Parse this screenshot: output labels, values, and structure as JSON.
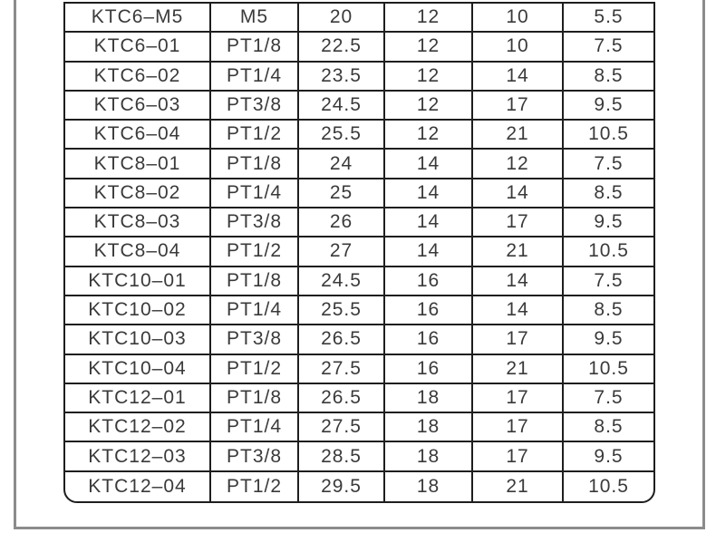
{
  "colors": {
    "background": "#ffffff",
    "page_frame": "#8c8c8c",
    "table_border": "#1e1e1e",
    "table_text": "#3a3a3a"
  },
  "table": {
    "rows": [
      [
        "KTC6–M5",
        "M5",
        "20",
        "12",
        "10",
        "5.5"
      ],
      [
        "KTC6–01",
        "PT1/8",
        "22.5",
        "12",
        "10",
        "7.5"
      ],
      [
        "KTC6–02",
        "PT1/4",
        "23.5",
        "12",
        "14",
        "8.5"
      ],
      [
        "KTC6–03",
        "PT3/8",
        "24.5",
        "12",
        "17",
        "9.5"
      ],
      [
        "KTC6–04",
        "PT1/2",
        "25.5",
        "12",
        "21",
        "10.5"
      ],
      [
        "KTC8–01",
        "PT1/8",
        "24",
        "14",
        "12",
        "7.5"
      ],
      [
        "KTC8–02",
        "PT1/4",
        "25",
        "14",
        "14",
        "8.5"
      ],
      [
        "KTC8–03",
        "PT3/8",
        "26",
        "14",
        "17",
        "9.5"
      ],
      [
        "KTC8–04",
        "PT1/2",
        "27",
        "14",
        "21",
        "10.5"
      ],
      [
        "KTC10–01",
        "PT1/8",
        "24.5",
        "16",
        "14",
        "7.5"
      ],
      [
        "KTC10–02",
        "PT1/4",
        "25.5",
        "16",
        "14",
        "8.5"
      ],
      [
        "KTC10–03",
        "PT3/8",
        "26.5",
        "16",
        "17",
        "9.5"
      ],
      [
        "KTC10–04",
        "PT1/2",
        "27.5",
        "16",
        "21",
        "10.5"
      ],
      [
        "KTC12–01",
        "PT1/8",
        "26.5",
        "18",
        "17",
        "7.5"
      ],
      [
        "KTC12–02",
        "PT1/4",
        "27.5",
        "18",
        "17",
        "8.5"
      ],
      [
        "KTC12–03",
        "PT3/8",
        "28.5",
        "18",
        "17",
        "9.5"
      ],
      [
        "KTC12–04",
        "PT1/2",
        "29.5",
        "18",
        "21",
        "10.5"
      ]
    ]
  }
}
